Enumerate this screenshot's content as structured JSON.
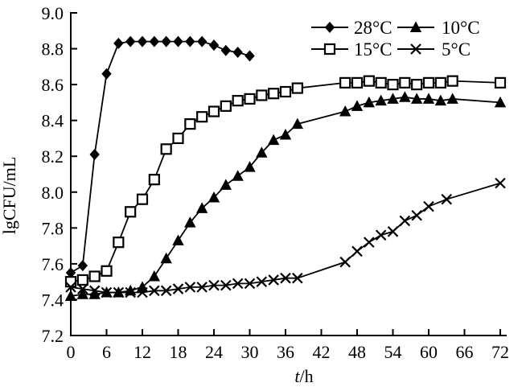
{
  "colors": {
    "ink": "#000000",
    "background": "#ffffff"
  },
  "chart_data": {
    "type": "line",
    "title": "",
    "xlabel": "t/h",
    "ylabel": "lgCFU/mL",
    "xlim": [
      0,
      72
    ],
    "ylim": [
      7.2,
      9.0
    ],
    "x_ticks": [
      "0",
      "6",
      "12",
      "18",
      "24",
      "30",
      "36",
      "42",
      "48",
      "54",
      "60",
      "66",
      "72"
    ],
    "y_ticks": [
      "7.2",
      "7.4",
      "7.6",
      "7.8",
      "8.0",
      "8.2",
      "8.4",
      "8.6",
      "8.8",
      "9.0"
    ],
    "grid": false,
    "legend_position": "top-right-inside",
    "legend_columns": [
      [
        0,
        1
      ],
      [
        2,
        3
      ]
    ],
    "series": [
      {
        "name": "28°C",
        "slug": "28c",
        "marker": "filled-diamond",
        "x": [
          0,
          2,
          4,
          6,
          8,
          10,
          12,
          14,
          16,
          18,
          20,
          22,
          24,
          26,
          28,
          30
        ],
        "y": [
          7.55,
          7.59,
          8.21,
          8.66,
          8.83,
          8.84,
          8.84,
          8.84,
          8.84,
          8.84,
          8.84,
          8.84,
          8.82,
          8.79,
          8.78,
          8.76
        ]
      },
      {
        "name": "15°C",
        "slug": "15c",
        "marker": "open-square",
        "x": [
          0,
          2,
          4,
          6,
          8,
          10,
          12,
          14,
          16,
          18,
          20,
          22,
          24,
          26,
          28,
          30,
          32,
          34,
          36,
          38,
          46,
          48,
          50,
          52,
          54,
          56,
          58,
          60,
          62,
          64,
          72
        ],
        "y": [
          7.5,
          7.51,
          7.53,
          7.56,
          7.72,
          7.89,
          7.96,
          8.07,
          8.24,
          8.3,
          8.38,
          8.42,
          8.45,
          8.48,
          8.51,
          8.52,
          8.54,
          8.55,
          8.56,
          8.58,
          8.61,
          8.61,
          8.62,
          8.61,
          8.6,
          8.61,
          8.6,
          8.61,
          8.61,
          8.62,
          8.61
        ]
      },
      {
        "name": "10°C",
        "slug": "10c",
        "marker": "filled-triangle",
        "x": [
          0,
          2,
          4,
          6,
          8,
          10,
          12,
          14,
          16,
          18,
          20,
          22,
          24,
          26,
          28,
          30,
          32,
          34,
          36,
          38,
          46,
          48,
          50,
          52,
          54,
          56,
          58,
          60,
          62,
          64,
          72
        ],
        "y": [
          7.42,
          7.43,
          7.43,
          7.44,
          7.44,
          7.45,
          7.47,
          7.53,
          7.63,
          7.73,
          7.83,
          7.91,
          7.97,
          8.04,
          8.09,
          8.14,
          8.22,
          8.29,
          8.32,
          8.38,
          8.45,
          8.48,
          8.5,
          8.51,
          8.52,
          8.53,
          8.52,
          8.52,
          8.51,
          8.52,
          8.5
        ]
      },
      {
        "name": "5°C",
        "slug": "5c",
        "marker": "x-cross",
        "x": [
          0,
          2,
          4,
          6,
          8,
          10,
          12,
          14,
          16,
          18,
          20,
          22,
          24,
          26,
          28,
          30,
          32,
          34,
          36,
          38,
          46,
          48,
          50,
          52,
          54,
          56,
          58,
          60,
          63,
          72
        ],
        "y": [
          7.47,
          7.46,
          7.45,
          7.44,
          7.44,
          7.44,
          7.44,
          7.45,
          7.45,
          7.46,
          7.47,
          7.47,
          7.48,
          7.48,
          7.49,
          7.49,
          7.5,
          7.51,
          7.52,
          7.52,
          7.61,
          7.67,
          7.72,
          7.76,
          7.78,
          7.84,
          7.87,
          7.92,
          7.96,
          8.05
        ]
      }
    ]
  }
}
